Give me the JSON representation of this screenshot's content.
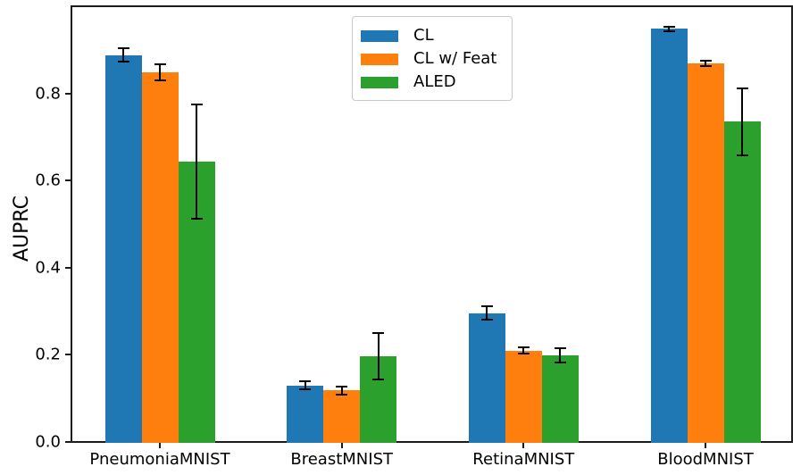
{
  "chart_data": {
    "type": "bar",
    "title": "",
    "xlabel": "",
    "ylabel": "AUPRC",
    "ylim": [
      0.0,
      1.0
    ],
    "yticks": [
      0.0,
      0.2,
      0.4,
      0.6,
      0.8
    ],
    "ytick_labels": [
      "0.0",
      "0.2",
      "0.4",
      "0.6",
      "0.8"
    ],
    "categories": [
      "PneumoniaMNIST",
      "BreastMNIST",
      "RetinaMNIST",
      "BloodMNIST"
    ],
    "series": [
      {
        "name": "CL",
        "color": "#1f77b4",
        "values": [
          0.888,
          0.13,
          0.296,
          0.948
        ],
        "errors": [
          0.016,
          0.009,
          0.015,
          0.005
        ]
      },
      {
        "name": "CL w/ Feat",
        "color": "#ff7f0e",
        "values": [
          0.848,
          0.118,
          0.21,
          0.868
        ],
        "errors": [
          0.018,
          0.009,
          0.008,
          0.006
        ]
      },
      {
        "name": "ALED",
        "color": "#2ca02c",
        "values": [
          0.643,
          0.197,
          0.199,
          0.735
        ],
        "errors": [
          0.131,
          0.054,
          0.016,
          0.077
        ]
      }
    ],
    "error_bars": true,
    "error_bar_color": "#000000",
    "axis_color": "#000000",
    "grid": false,
    "legend": {
      "position": "upper center",
      "entries": [
        "CL",
        "CL w/ Feat",
        "ALED"
      ]
    }
  }
}
